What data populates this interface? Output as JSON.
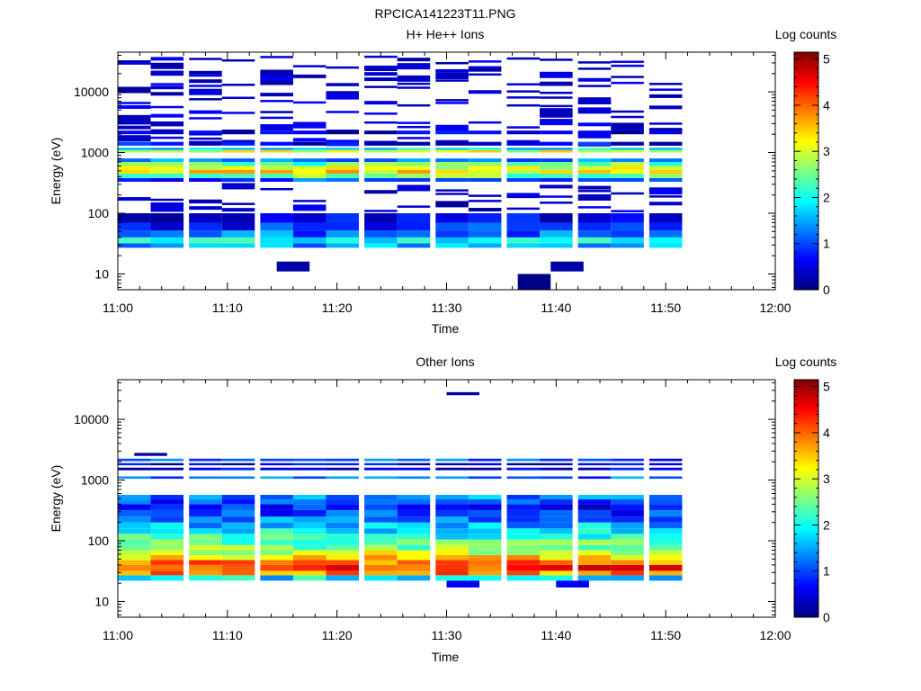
{
  "figure": {
    "title": "RPCICA141223T11.PNG"
  },
  "colorscale": {
    "stops": [
      "#00007f",
      "#0000ff",
      "#007fff",
      "#00ffff",
      "#7fff7f",
      "#ffff00",
      "#ff7f00",
      "#ff0000",
      "#7f0000"
    ]
  },
  "chart_data": [
    {
      "type": "heatmap",
      "title": "H+ He++ Ions",
      "xlabel": "Time",
      "ylabel": "Energy (eV)",
      "yscale": "log",
      "ylim": [
        5.5,
        45000
      ],
      "xlim": [
        "11:00",
        "12:00"
      ],
      "x_ticks": [
        "11:00",
        "11:10",
        "11:20",
        "11:30",
        "11:40",
        "11:50",
        "12:00"
      ],
      "y_ticks": [
        "10",
        "100",
        "1000",
        "10000"
      ],
      "colorbar": {
        "label": "Log counts",
        "range": [
          0,
          5.15
        ],
        "ticks": [
          "0",
          "1",
          "2",
          "3",
          "4",
          "5"
        ]
      },
      "time_bins": [
        "11:01.5",
        "11:04.5",
        "11:08",
        "11:11",
        "11:14.5",
        "11:17.5",
        "11:20.5",
        "11:24",
        "11:27",
        "11:30.5",
        "11:33.5",
        "11:37",
        "11:40",
        "11:43.5",
        "11:46.5",
        "11:50"
      ],
      "bands": [
        {
          "e_min": 27,
          "e_max": 32,
          "value": 1.4
        },
        {
          "e_min": 32,
          "e_max": 40,
          "value": 1.9
        },
        {
          "e_min": 40,
          "e_max": 52,
          "value": 1.2
        },
        {
          "e_min": 52,
          "e_max": 70,
          "value": 0.8
        },
        {
          "e_min": 70,
          "e_max": 100,
          "value": 0.5
        },
        {
          "e_min": 330,
          "e_max": 380,
          "value": 1.0
        },
        {
          "e_min": 380,
          "e_max": 450,
          "value": 2.5
        },
        {
          "e_min": 450,
          "e_max": 520,
          "value": 3.3
        },
        {
          "e_min": 520,
          "e_max": 600,
          "value": 3.0
        },
        {
          "e_min": 600,
          "e_max": 700,
          "value": 2.4
        },
        {
          "e_min": 700,
          "e_max": 800,
          "value": 1.3
        },
        {
          "e_min": 1000,
          "e_max": 1100,
          "value": 3.0
        },
        {
          "e_min": 1100,
          "e_max": 1200,
          "value": 1.8
        },
        {
          "e_min": 1300,
          "e_max": 1500,
          "value": 0.6
        },
        {
          "e_min": 2000,
          "e_max": 2300,
          "value": 0.4
        }
      ],
      "sparse_lines": {
        "e_min": 100,
        "e_max": 38000,
        "value": 0.15
      },
      "isolated_points": [
        {
          "time": "11:16",
          "e_min": 11,
          "e_max": 16,
          "value": 0.2
        },
        {
          "time": "11:38",
          "e_min": 5.5,
          "e_max": 10,
          "value": 0.05
        },
        {
          "time": "11:41",
          "e_min": 11,
          "e_max": 16,
          "value": 0.2
        }
      ]
    },
    {
      "type": "heatmap",
      "title": "Other Ions",
      "xlabel": "Time",
      "ylabel": "Energy (eV)",
      "yscale": "log",
      "ylim": [
        5.5,
        45000
      ],
      "xlim": [
        "11:00",
        "12:00"
      ],
      "x_ticks": [
        "11:00",
        "11:10",
        "11:20",
        "11:30",
        "11:40",
        "11:50",
        "12:00"
      ],
      "y_ticks": [
        "10",
        "100",
        "1000",
        "10000"
      ],
      "colorbar": {
        "label": "Log counts",
        "range": [
          0,
          5.15
        ],
        "ticks": [
          "0",
          "1",
          "2",
          "3",
          "4",
          "5"
        ]
      },
      "time_bins": [
        "11:01.5",
        "11:04.5",
        "11:08",
        "11:11",
        "11:14.5",
        "11:17.5",
        "11:20.5",
        "11:24",
        "11:27",
        "11:30.5",
        "11:33.5",
        "11:37",
        "11:40",
        "11:43.5",
        "11:46.5",
        "11:50"
      ],
      "bands": [
        {
          "e_min": 22,
          "e_max": 27,
          "value": 1.8
        },
        {
          "e_min": 27,
          "e_max": 32,
          "value": 3.8
        },
        {
          "e_min": 32,
          "e_max": 40,
          "value": 4.3
        },
        {
          "e_min": 40,
          "e_max": 48,
          "value": 3.9
        },
        {
          "e_min": 48,
          "e_max": 58,
          "value": 3.4
        },
        {
          "e_min": 58,
          "e_max": 70,
          "value": 3.0
        },
        {
          "e_min": 70,
          "e_max": 85,
          "value": 2.6
        },
        {
          "e_min": 85,
          "e_max": 105,
          "value": 2.4
        },
        {
          "e_min": 105,
          "e_max": 130,
          "value": 2.1
        },
        {
          "e_min": 130,
          "e_max": 160,
          "value": 1.9
        },
        {
          "e_min": 160,
          "e_max": 200,
          "value": 1.6
        },
        {
          "e_min": 200,
          "e_max": 250,
          "value": 1.3
        },
        {
          "e_min": 250,
          "e_max": 320,
          "value": 1.0
        },
        {
          "e_min": 320,
          "e_max": 400,
          "value": 0.7
        },
        {
          "e_min": 400,
          "e_max": 480,
          "value": 0.9
        },
        {
          "e_min": 480,
          "e_max": 570,
          "value": 1.3
        },
        {
          "e_min": 1050,
          "e_max": 1150,
          "value": 1.2
        },
        {
          "e_min": 1450,
          "e_max": 1600,
          "value": 0.6
        },
        {
          "e_min": 1750,
          "e_max": 1900,
          "value": 0.4
        },
        {
          "e_min": 2050,
          "e_max": 2250,
          "value": 1.0
        }
      ],
      "isolated_points": [
        {
          "time": "11:31.5",
          "e_min": 25000,
          "e_max": 28000,
          "value": 0.15
        },
        {
          "time": "11:31.5",
          "e_min": 17,
          "e_max": 22,
          "value": 0.6
        },
        {
          "time": "11:41.5",
          "e_min": 17,
          "e_max": 22,
          "value": 0.6
        },
        {
          "time": "11:03",
          "e_min": 2500,
          "e_max": 2800,
          "value": 0.15
        }
      ]
    }
  ]
}
